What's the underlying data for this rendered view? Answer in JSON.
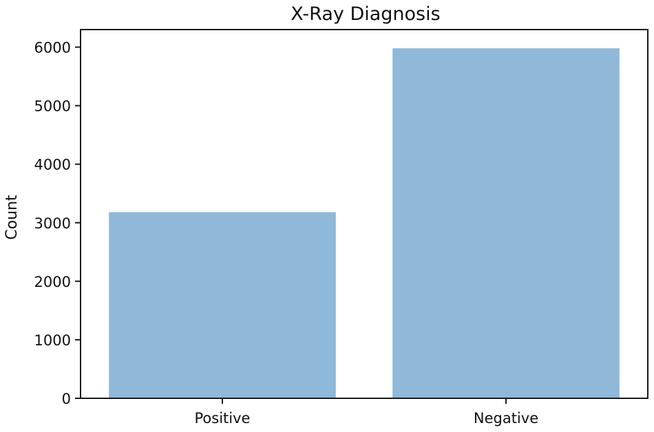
{
  "chart_data": {
    "type": "bar",
    "title": "X-Ray Diagnosis",
    "xlabel": "",
    "ylabel": "Count",
    "categories": [
      "Positive",
      "Negative"
    ],
    "values": [
      3180,
      5980
    ],
    "ylim": [
      0,
      6300
    ],
    "yticks": [
      0,
      1000,
      2000,
      3000,
      4000,
      5000,
      6000
    ],
    "grid": false,
    "bar_color": "#8fb8d9"
  }
}
